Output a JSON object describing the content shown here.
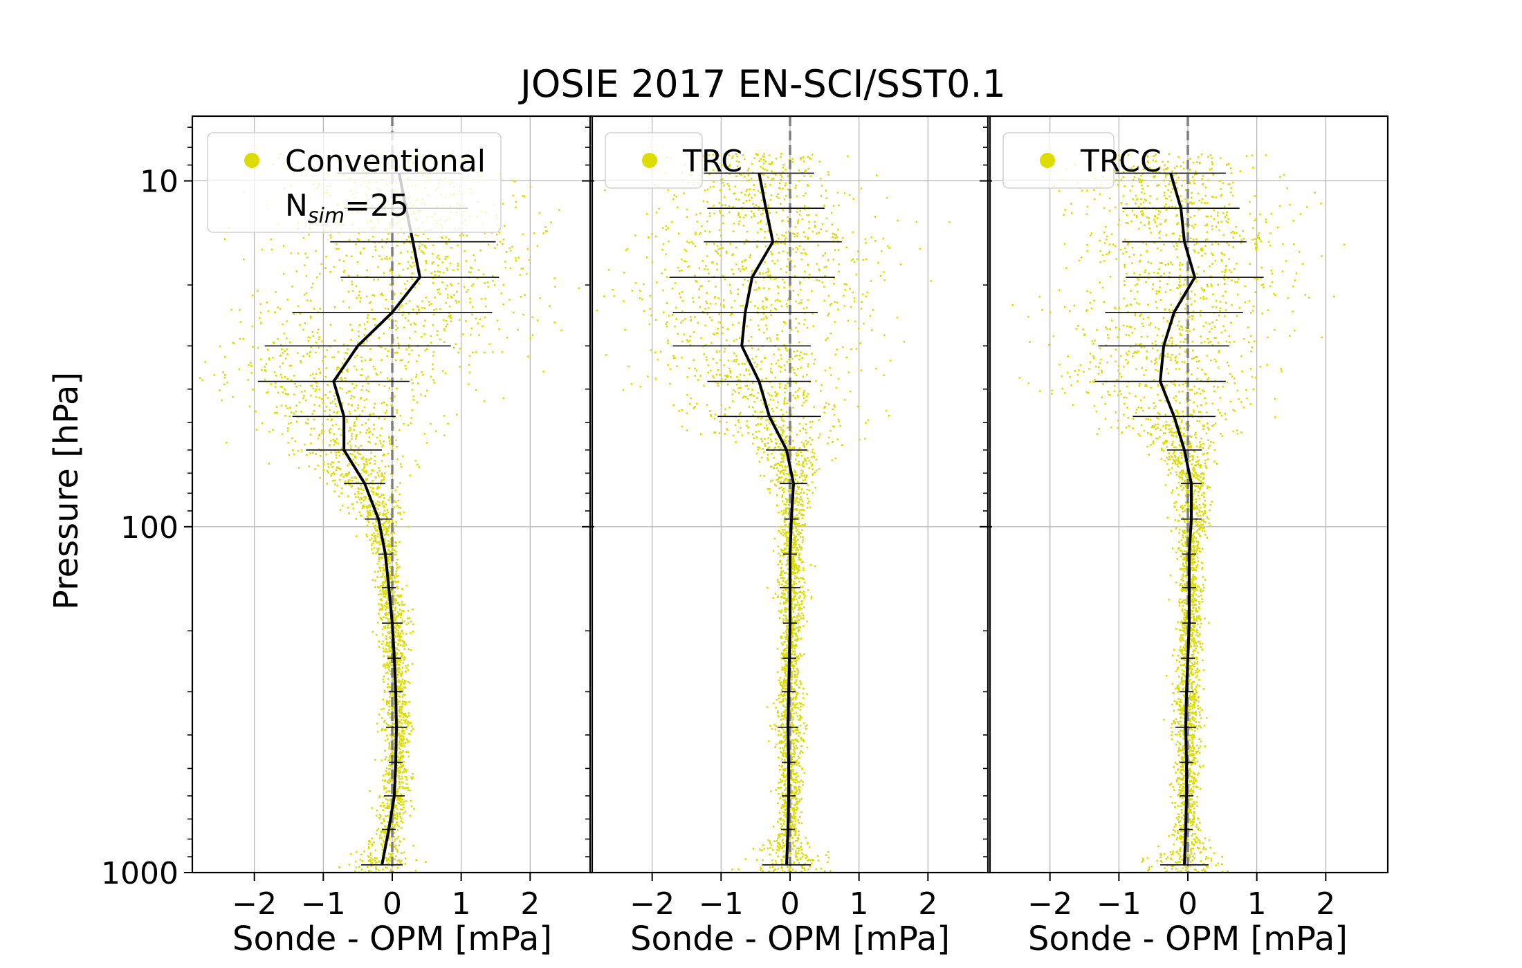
{
  "figure_title": "JOSIE 2017 EN-SCI/SST0.1",
  "colors": {
    "points": "#dcdc00",
    "mean_line": "#000000",
    "zero_line": "#808080",
    "grid": "#b0b0b0"
  },
  "chart_data": [
    {
      "type": "scatter",
      "title": "",
      "xlabel": "Sonde - OPM [mPa]",
      "ylabel": "Pressure [hPa]",
      "xlim": [
        -2.9,
        2.9
      ],
      "ylim": [
        1000,
        6.5
      ],
      "yscale": "log",
      "xticks": [
        "−2",
        "−1",
        "0",
        "1",
        "2"
      ],
      "yticks": [
        "10",
        "100",
        "1000"
      ],
      "grid": true,
      "legend": {
        "label": "Conventional",
        "note_base": "N",
        "note_sub": "sim",
        "note_rest": "=25",
        "placement": "top-left"
      },
      "series": [
        {
          "name": "Conventional",
          "mean_profile": [
            {
              "pressure": 950,
              "value": -0.15
            },
            {
              "pressure": 750,
              "value": -0.05
            },
            {
              "pressure": 600,
              "value": 0.03
            },
            {
              "pressure": 480,
              "value": 0.05
            },
            {
              "pressure": 380,
              "value": 0.06
            },
            {
              "pressure": 300,
              "value": 0.05
            },
            {
              "pressure": 240,
              "value": 0.03
            },
            {
              "pressure": 190,
              "value": 0.0
            },
            {
              "pressure": 150,
              "value": -0.05
            },
            {
              "pressure": 120,
              "value": -0.1
            },
            {
              "pressure": 95,
              "value": -0.2
            },
            {
              "pressure": 75,
              "value": -0.4
            },
            {
              "pressure": 60,
              "value": -0.7
            },
            {
              "pressure": 48,
              "value": -0.7
            },
            {
              "pressure": 38,
              "value": -0.85
            },
            {
              "pressure": 30,
              "value": -0.5
            },
            {
              "pressure": 24,
              "value": 0.0
            },
            {
              "pressure": 19,
              "value": 0.4
            },
            {
              "pressure": 15,
              "value": 0.3
            },
            {
              "pressure": 12,
              "value": 0.2
            },
            {
              "pressure": 9.5,
              "value": 0.1
            }
          ],
          "errors": [
            0.3,
            0.1,
            0.15,
            0.1,
            0.15,
            0.1,
            0.1,
            0.15,
            0.1,
            0.1,
            0.2,
            0.3,
            0.55,
            0.75,
            1.1,
            1.35,
            1.45,
            1.15,
            1.2,
            0.9,
            0.9
          ]
        }
      ]
    },
    {
      "type": "scatter",
      "title": "",
      "xlabel": "Sonde - OPM [mPa]",
      "ylabel": "",
      "xlim": [
        -2.9,
        2.9
      ],
      "ylim": [
        1000,
        6.5
      ],
      "yscale": "log",
      "xticks": [
        "−2",
        "−1",
        "0",
        "1",
        "2"
      ],
      "grid": true,
      "legend": {
        "label": "TRC",
        "placement": "top-left"
      },
      "series": [
        {
          "name": "TRC",
          "mean_profile": [
            {
              "pressure": 950,
              "value": -0.05
            },
            {
              "pressure": 750,
              "value": -0.03
            },
            {
              "pressure": 600,
              "value": -0.02
            },
            {
              "pressure": 480,
              "value": -0.02
            },
            {
              "pressure": 380,
              "value": -0.03
            },
            {
              "pressure": 300,
              "value": -0.02
            },
            {
              "pressure": 240,
              "value": -0.01
            },
            {
              "pressure": 190,
              "value": 0.0
            },
            {
              "pressure": 150,
              "value": 0.0
            },
            {
              "pressure": 120,
              "value": 0.0
            },
            {
              "pressure": 95,
              "value": 0.02
            },
            {
              "pressure": 75,
              "value": 0.05
            },
            {
              "pressure": 60,
              "value": -0.05
            },
            {
              "pressure": 48,
              "value": -0.3
            },
            {
              "pressure": 38,
              "value": -0.45
            },
            {
              "pressure": 30,
              "value": -0.7
            },
            {
              "pressure": 24,
              "value": -0.65
            },
            {
              "pressure": 19,
              "value": -0.55
            },
            {
              "pressure": 15,
              "value": -0.25
            },
            {
              "pressure": 12,
              "value": -0.35
            },
            {
              "pressure": 9.5,
              "value": -0.45
            }
          ],
          "errors": [
            0.35,
            0.1,
            0.1,
            0.1,
            0.15,
            0.1,
            0.1,
            0.1,
            0.15,
            0.1,
            0.1,
            0.2,
            0.3,
            0.75,
            0.75,
            1.0,
            1.05,
            1.2,
            1.0,
            0.85,
            0.8
          ]
        }
      ]
    },
    {
      "type": "scatter",
      "title": "",
      "xlabel": "Sonde - OPM [mPa]",
      "ylabel": "",
      "xlim": [
        -2.9,
        2.9
      ],
      "ylim": [
        1000,
        6.5
      ],
      "yscale": "log",
      "xticks": [
        "−2",
        "−1",
        "0",
        "1",
        "2"
      ],
      "grid": true,
      "legend": {
        "label": "TRCC",
        "placement": "top-left"
      },
      "series": [
        {
          "name": "TRCC",
          "mean_profile": [
            {
              "pressure": 950,
              "value": -0.05
            },
            {
              "pressure": 750,
              "value": -0.03
            },
            {
              "pressure": 600,
              "value": -0.02
            },
            {
              "pressure": 480,
              "value": -0.02
            },
            {
              "pressure": 380,
              "value": -0.03
            },
            {
              "pressure": 300,
              "value": -0.02
            },
            {
              "pressure": 240,
              "value": 0.0
            },
            {
              "pressure": 190,
              "value": 0.02
            },
            {
              "pressure": 150,
              "value": 0.02
            },
            {
              "pressure": 120,
              "value": 0.02
            },
            {
              "pressure": 95,
              "value": 0.05
            },
            {
              "pressure": 75,
              "value": 0.05
            },
            {
              "pressure": 60,
              "value": -0.05
            },
            {
              "pressure": 48,
              "value": -0.2
            },
            {
              "pressure": 38,
              "value": -0.4
            },
            {
              "pressure": 30,
              "value": -0.35
            },
            {
              "pressure": 24,
              "value": -0.2
            },
            {
              "pressure": 19,
              "value": 0.1
            },
            {
              "pressure": 15,
              "value": -0.05
            },
            {
              "pressure": 12,
              "value": -0.1
            },
            {
              "pressure": 9.5,
              "value": -0.25
            }
          ],
          "errors": [
            0.35,
            0.1,
            0.1,
            0.1,
            0.15,
            0.1,
            0.1,
            0.1,
            0.1,
            0.1,
            0.15,
            0.15,
            0.25,
            0.6,
            0.95,
            0.95,
            1.0,
            1.0,
            0.9,
            0.85,
            0.8
          ]
        }
      ]
    }
  ]
}
